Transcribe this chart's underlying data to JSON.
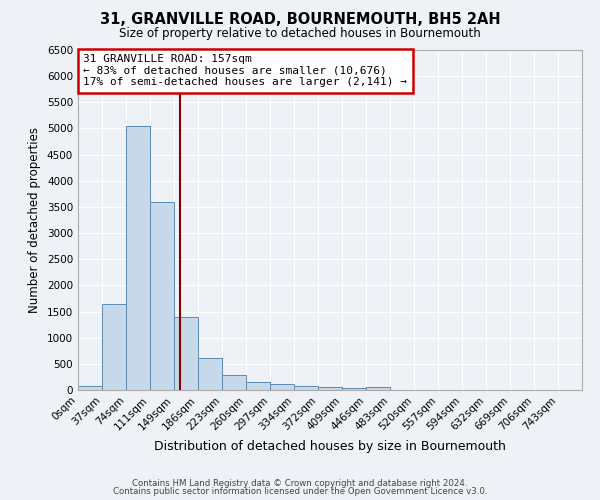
{
  "title": "31, GRANVILLE ROAD, BOURNEMOUTH, BH5 2AH",
  "subtitle": "Size of property relative to detached houses in Bournemouth",
  "xlabel": "Distribution of detached houses by size in Bournemouth",
  "ylabel": "Number of detached properties",
  "bin_labels": [
    "0sqm",
    "37sqm",
    "74sqm",
    "111sqm",
    "149sqm",
    "186sqm",
    "223sqm",
    "260sqm",
    "297sqm",
    "334sqm",
    "372sqm",
    "409sqm",
    "446sqm",
    "483sqm",
    "520sqm",
    "557sqm",
    "594sqm",
    "632sqm",
    "669sqm",
    "706sqm",
    "743sqm"
  ],
  "bar_values": [
    75,
    1650,
    5050,
    3600,
    1400,
    620,
    290,
    150,
    110,
    75,
    55,
    45,
    55,
    5,
    3,
    2,
    1,
    1,
    0,
    0,
    0
  ],
  "bar_color": "#c7d9e8",
  "bar_edge_color": "#5a8ab5",
  "property_line_color": "#8b0000",
  "ylim": [
    0,
    6500
  ],
  "yticks": [
    0,
    500,
    1000,
    1500,
    2000,
    2500,
    3000,
    3500,
    4000,
    4500,
    5000,
    5500,
    6000,
    6500
  ],
  "annotation_text": "31 GRANVILLE ROAD: 157sqm\n← 83% of detached houses are smaller (10,676)\n17% of semi-detached houses are larger (2,141) →",
  "annotation_box_color": "#ffffff",
  "annotation_box_edge_color": "#cc0000",
  "footer_line1": "Contains HM Land Registry data © Crown copyright and database right 2024.",
  "footer_line2": "Contains public sector information licensed under the Open Government Licence v3.0.",
  "background_color": "#eef2f7",
  "grid_color": "#ffffff",
  "bin_width": 37,
  "property_size": 157,
  "n_bins": 21
}
